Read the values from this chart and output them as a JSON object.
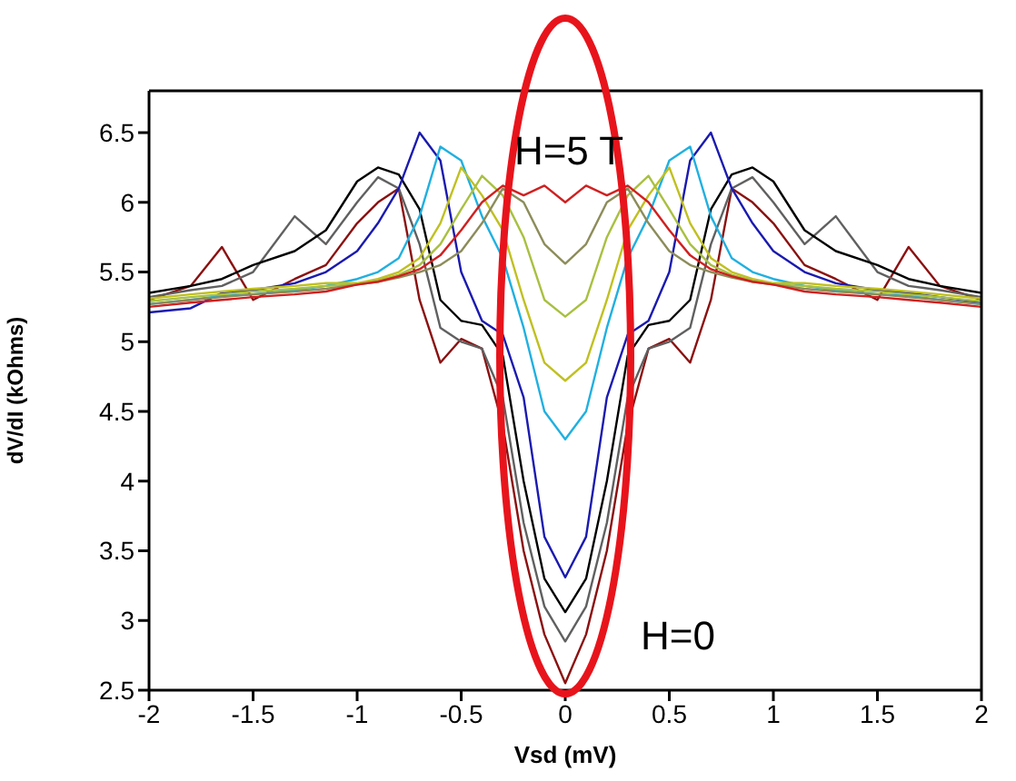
{
  "chart_data": {
    "type": "line",
    "xlabel": "Vsd (mV)",
    "ylabel": "dV/dI (kOhms)",
    "xlim": [
      -2,
      2
    ],
    "xticks": [
      -2,
      -1.5,
      -1,
      -0.5,
      0,
      0.5,
      1,
      1.5,
      2
    ],
    "ylim": [
      2.5,
      6.8
    ],
    "yticks": [
      2.5,
      3,
      3.5,
      4,
      4.5,
      5,
      5.5,
      6,
      6.5
    ],
    "grid": false,
    "marker": "none",
    "line_style": "solid",
    "x": [
      -2,
      -1.8,
      -1.65,
      -1.5,
      -1.3,
      -1.15,
      -1,
      -0.9,
      -0.8,
      -0.7,
      -0.6,
      -0.5,
      -0.4,
      -0.3,
      -0.2,
      -0.1,
      0,
      0.1,
      0.2,
      0.3,
      0.4,
      0.5,
      0.6,
      0.7,
      0.8,
      0.9,
      1,
      1.15,
      1.3,
      1.5,
      1.65,
      1.8,
      2
    ],
    "series": [
      {
        "color": "#8b1010",
        "values": [
          5.3,
          5.4,
          5.68,
          5.3,
          5.45,
          5.55,
          5.85,
          6.0,
          6.1,
          5.3,
          4.85,
          5.02,
          4.95,
          4.4,
          3.5,
          2.9,
          2.55,
          2.9,
          3.5,
          4.4,
          4.95,
          5.02,
          4.85,
          5.3,
          6.1,
          6.0,
          5.85,
          5.55,
          5.45,
          5.3,
          5.68,
          5.4,
          5.3
        ]
      },
      {
        "color": "#606060",
        "values": [
          5.32,
          5.37,
          5.4,
          5.5,
          5.9,
          5.7,
          6.0,
          6.18,
          6.1,
          5.7,
          5.1,
          5.0,
          4.95,
          4.6,
          3.7,
          3.1,
          2.85,
          3.1,
          3.7,
          4.6,
          4.95,
          5.0,
          5.1,
          5.7,
          6.1,
          6.18,
          6.0,
          5.7,
          5.9,
          5.5,
          5.4,
          5.37,
          5.32
        ]
      },
      {
        "color": "#000000",
        "values": [
          5.35,
          5.4,
          5.45,
          5.55,
          5.65,
          5.8,
          6.15,
          6.25,
          6.2,
          5.95,
          5.3,
          5.15,
          5.12,
          4.9,
          4.0,
          3.3,
          3.06,
          3.3,
          4.0,
          4.9,
          5.12,
          5.15,
          5.3,
          5.95,
          6.2,
          6.25,
          6.15,
          5.8,
          5.65,
          5.55,
          5.45,
          5.4,
          5.35
        ]
      },
      {
        "color": "#1a1ab0",
        "values": [
          5.21,
          5.24,
          5.35,
          5.37,
          5.42,
          5.5,
          5.65,
          5.85,
          6.1,
          6.5,
          6.3,
          5.5,
          5.15,
          5.05,
          4.6,
          3.6,
          3.31,
          3.6,
          4.6,
          5.05,
          5.15,
          5.5,
          6.3,
          6.5,
          6.1,
          5.85,
          5.65,
          5.5,
          5.42,
          5.37,
          5.35,
          5.32,
          5.28
        ]
      },
      {
        "color": "#20b0e0",
        "values": [
          5.27,
          5.3,
          5.33,
          5.34,
          5.37,
          5.4,
          5.45,
          5.5,
          5.6,
          5.9,
          6.4,
          6.3,
          5.9,
          5.6,
          5.1,
          4.5,
          4.3,
          4.5,
          5.1,
          5.6,
          5.9,
          6.3,
          6.4,
          5.9,
          5.6,
          5.5,
          5.45,
          5.4,
          5.37,
          5.34,
          5.33,
          5.3,
          5.27
        ]
      },
      {
        "color": "#c0c020",
        "values": [
          5.31,
          5.34,
          5.36,
          5.38,
          5.4,
          5.42,
          5.42,
          5.45,
          5.5,
          5.6,
          5.85,
          6.25,
          6.05,
          5.8,
          5.3,
          4.85,
          4.72,
          4.85,
          5.3,
          5.8,
          6.05,
          6.25,
          5.85,
          5.6,
          5.5,
          5.45,
          5.42,
          5.42,
          5.4,
          5.38,
          5.36,
          5.34,
          5.31
        ]
      },
      {
        "color": "#a8c040",
        "values": [
          5.29,
          5.32,
          5.34,
          5.36,
          5.38,
          5.4,
          5.41,
          5.44,
          5.48,
          5.55,
          5.7,
          5.95,
          6.19,
          6.05,
          5.75,
          5.3,
          5.18,
          5.3,
          5.75,
          6.05,
          6.19,
          5.95,
          5.7,
          5.55,
          5.48,
          5.44,
          5.41,
          5.4,
          5.38,
          5.36,
          5.34,
          5.32,
          5.29
        ]
      },
      {
        "color": "#8c8c5a",
        "values": [
          5.27,
          5.3,
          5.32,
          5.34,
          5.36,
          5.38,
          5.41,
          5.43,
          5.46,
          5.5,
          5.55,
          5.65,
          5.85,
          6.1,
          6.0,
          5.7,
          5.56,
          5.7,
          6.0,
          6.1,
          5.85,
          5.65,
          5.55,
          5.5,
          5.46,
          5.43,
          5.41,
          5.38,
          5.36,
          5.34,
          5.32,
          5.3,
          5.27
        ]
      },
      {
        "color": "#d02020",
        "values": [
          5.25,
          5.28,
          5.3,
          5.32,
          5.34,
          5.36,
          5.41,
          5.43,
          5.47,
          5.52,
          5.62,
          5.8,
          6.0,
          6.12,
          6.05,
          6.12,
          6.0,
          6.12,
          6.05,
          6.12,
          6.0,
          5.8,
          5.62,
          5.52,
          5.47,
          5.43,
          5.41,
          5.36,
          5.34,
          5.32,
          5.3,
          5.28,
          5.25
        ]
      }
    ],
    "annotations": [
      "H=5 T",
      "H=0"
    ]
  }
}
